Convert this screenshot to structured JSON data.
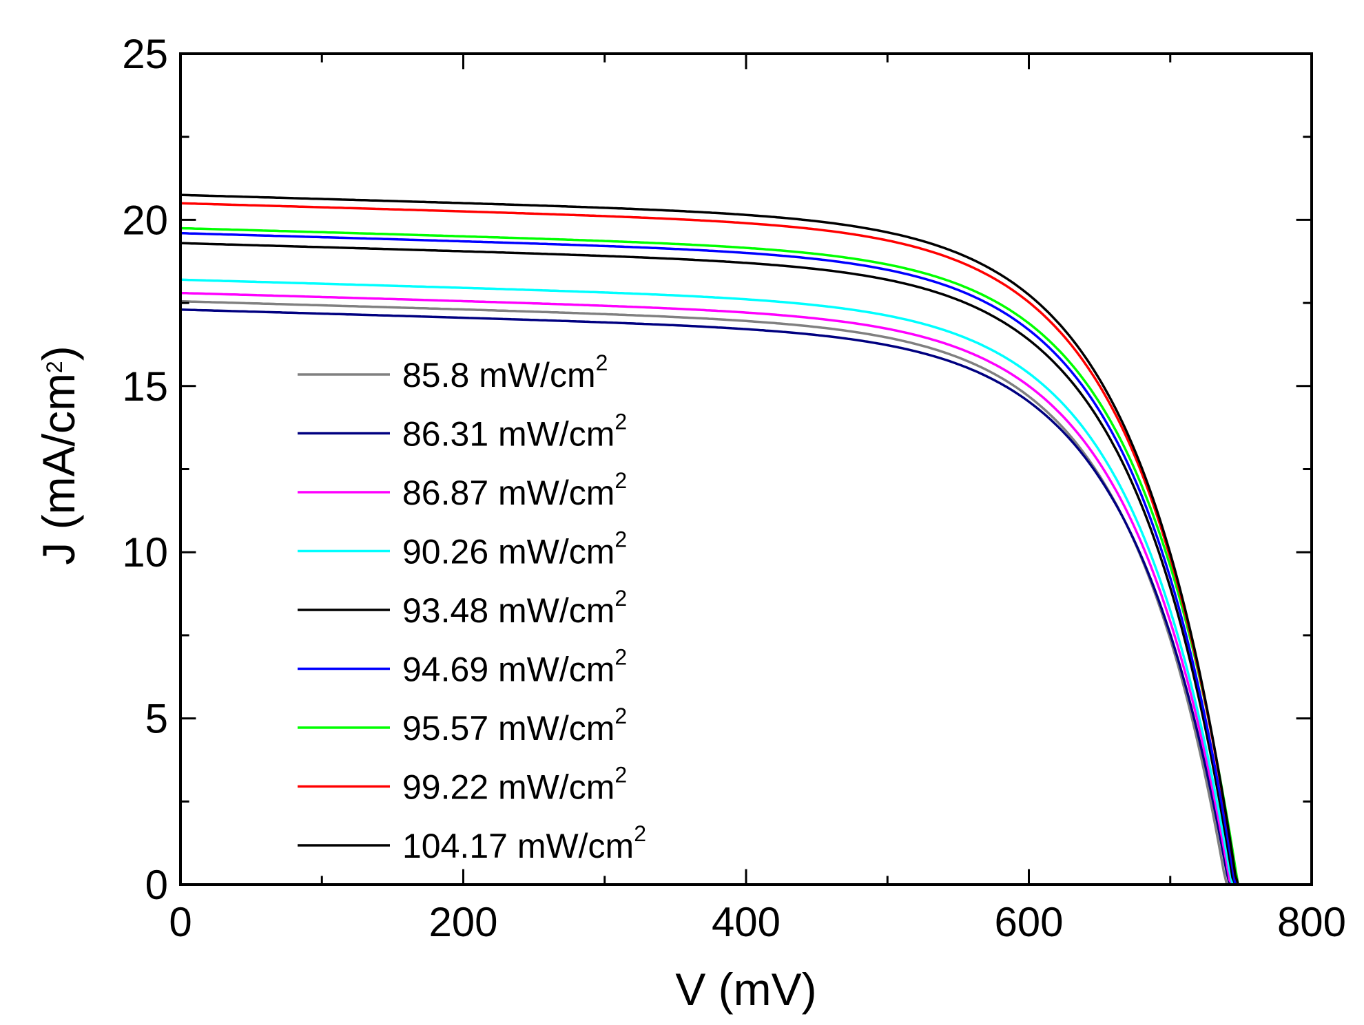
{
  "chart_data": {
    "type": "line",
    "title": "",
    "xlabel": "V (mV)",
    "ylabel_main": "J (mA/cm",
    "ylabel_sup": "2",
    "ylabel_end": ")",
    "xlim": [
      0,
      800
    ],
    "ylim": [
      0,
      25
    ],
    "x_ticks": [
      0,
      200,
      400,
      600,
      800
    ],
    "x_tick_labels": [
      "0",
      "200",
      "400",
      "600",
      "800"
    ],
    "x_minor_ticks": [
      100,
      300,
      500,
      700
    ],
    "y_ticks": [
      0,
      5,
      10,
      15,
      20,
      25
    ],
    "y_tick_labels": [
      "0",
      "5",
      "10",
      "15",
      "20",
      "25"
    ],
    "y_minor_ticks": [
      2.5,
      7.5,
      12.5,
      17.5,
      22.5
    ],
    "grid": false,
    "legend_position": "center-left",
    "series": [
      {
        "name": "85.8 mW/cm",
        "name_sup": "2",
        "color": "#808080",
        "jsc": 17.55,
        "voc": 743,
        "n": 1.0
      },
      {
        "name": "86.31 mW/cm",
        "name_sup": "2",
        "color": "#000080",
        "jsc": 17.3,
        "voc": 745,
        "n": 1.0
      },
      {
        "name": "86.87 mW/cm",
        "name_sup": "2",
        "color": "#ff00ff",
        "jsc": 17.8,
        "voc": 746,
        "n": 1.0
      },
      {
        "name": "90.26 mW/cm",
        "name_sup": "2",
        "color": "#00ffff",
        "jsc": 18.2,
        "voc": 747,
        "n": 1.0
      },
      {
        "name": "93.48 mW/cm",
        "name_sup": "2",
        "color": "#000000",
        "jsc": 19.3,
        "voc": 748,
        "n": 1.0
      },
      {
        "name": "94.69 mW/cm",
        "name_sup": "2",
        "color": "#0000ff",
        "jsc": 19.6,
        "voc": 749,
        "n": 1.0
      },
      {
        "name": "95.57 mW/cm",
        "name_sup": "2",
        "color": "#00ff00",
        "jsc": 19.75,
        "voc": 751,
        "n": 1.0
      },
      {
        "name": "99.22 mW/cm",
        "name_sup": "2",
        "color": "#ff0000",
        "jsc": 20.5,
        "voc": 750,
        "n": 1.0
      },
      {
        "name": "104.17 mW/cm",
        "name_sup": "2",
        "color": "#000000",
        "jsc": 20.75,
        "voc": 750,
        "n": 1.0
      }
    ]
  }
}
